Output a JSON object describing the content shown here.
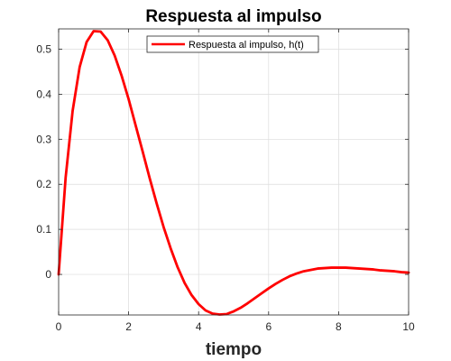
{
  "chart_data": {
    "type": "line",
    "title": "Respuesta al impulso",
    "xlabel": "tiempo",
    "ylabel": "",
    "xlim": [
      0,
      10
    ],
    "ylim": [
      -0.09,
      0.545
    ],
    "xticks": [
      0,
      2,
      4,
      6,
      8,
      10
    ],
    "xtick_labels": [
      "0",
      "2",
      "4",
      "6",
      "8",
      "10"
    ],
    "yticks": [
      0,
      0.1,
      0.2,
      0.3,
      0.4,
      0.5
    ],
    "ytick_labels": [
      "0",
      "0.1",
      "0.2",
      "0.3",
      "0.4",
      "0.5"
    ],
    "grid": true,
    "legend_placement": "top-center",
    "series": [
      {
        "name": "Respuesta al impulso, h(t)",
        "color": "#ff0000",
        "x": [
          0,
          0.2,
          0.4,
          0.6,
          0.8,
          1.0,
          1.2,
          1.4,
          1.6,
          1.8,
          2.0,
          2.2,
          2.4,
          2.6,
          2.8,
          3.0,
          3.2,
          3.4,
          3.6,
          3.8,
          4.0,
          4.2,
          4.4,
          4.6,
          4.8,
          5.0,
          5.2,
          5.4,
          5.6,
          5.8,
          6.0,
          6.2,
          6.4,
          6.6,
          6.8,
          7.0,
          7.2,
          7.4,
          7.6,
          7.8,
          8.0,
          8.2,
          8.4,
          8.6,
          8.8,
          9.0,
          9.2,
          9.4,
          9.6,
          9.8,
          10.0
        ],
        "y": [
          0,
          0.215,
          0.363,
          0.46,
          0.516,
          0.54,
          0.539,
          0.52,
          0.486,
          0.441,
          0.389,
          0.331,
          0.273,
          0.214,
          0.158,
          0.105,
          0.058,
          0.016,
          -0.019,
          -0.046,
          -0.066,
          -0.08,
          -0.087,
          -0.089,
          -0.088,
          -0.082,
          -0.074,
          -0.064,
          -0.053,
          -0.042,
          -0.031,
          -0.021,
          -0.012,
          -0.004,
          0.002,
          0.007,
          0.01,
          0.013,
          0.014,
          0.015,
          0.015,
          0.015,
          0.014,
          0.013,
          0.012,
          0.011,
          0.009,
          0.008,
          0.007,
          0.005,
          0.004
        ]
      }
    ]
  }
}
